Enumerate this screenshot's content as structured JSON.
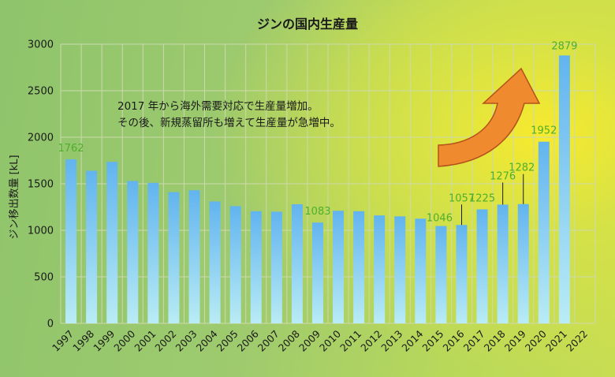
{
  "colors": {
    "bar_top": "#62b4ef",
    "bar_bottom": "#b9ecf5",
    "data_label": "#4fae2c",
    "arrow_fill": "#f08a2e",
    "arrow_stroke": "#b3521a"
  },
  "annotation": {
    "line1": "2017 年から海外需要対応で生産量増加。",
    "line2": "その後、新規蒸留所も増えて生産量が急増中。",
    "arrow_icon": "curved-up-arrow"
  },
  "chart_data": {
    "type": "bar",
    "title": "ジンの国内生産量",
    "xlabel": "",
    "ylabel": "ジン移出数量 [kL]",
    "ylim": [
      0,
      3000
    ],
    "yticks": [
      0,
      500,
      1000,
      1500,
      2000,
      2500,
      3000
    ],
    "grid": true,
    "categories": [
      "1997",
      "1998",
      "1999",
      "2000",
      "2001",
      "2002",
      "2003",
      "2004",
      "2005",
      "2006",
      "2007",
      "2008",
      "2009",
      "2010",
      "2011",
      "2012",
      "2013",
      "2014",
      "2015",
      "2016",
      "2017",
      "2018",
      "2019",
      "2020",
      "2021",
      "2022"
    ],
    "values": [
      1762,
      1640,
      1735,
      1530,
      1510,
      1410,
      1430,
      1310,
      1260,
      1205,
      1200,
      1280,
      1083,
      1210,
      1205,
      1160,
      1150,
      1125,
      1046,
      1057,
      1225,
      1276,
      1282,
      1952,
      2879,
      null
    ],
    "data_labels": [
      {
        "category": "1997",
        "text": "1762"
      },
      {
        "category": "2009",
        "text": "1083"
      },
      {
        "category": "2015",
        "text": "1046"
      },
      {
        "category": "2016",
        "text": "1057"
      },
      {
        "category": "2017",
        "text": "1225"
      },
      {
        "category": "2018",
        "text": "1276"
      },
      {
        "category": "2019",
        "text": "1282"
      },
      {
        "category": "2020",
        "text": "1952"
      },
      {
        "category": "2021",
        "text": "2879"
      }
    ]
  }
}
